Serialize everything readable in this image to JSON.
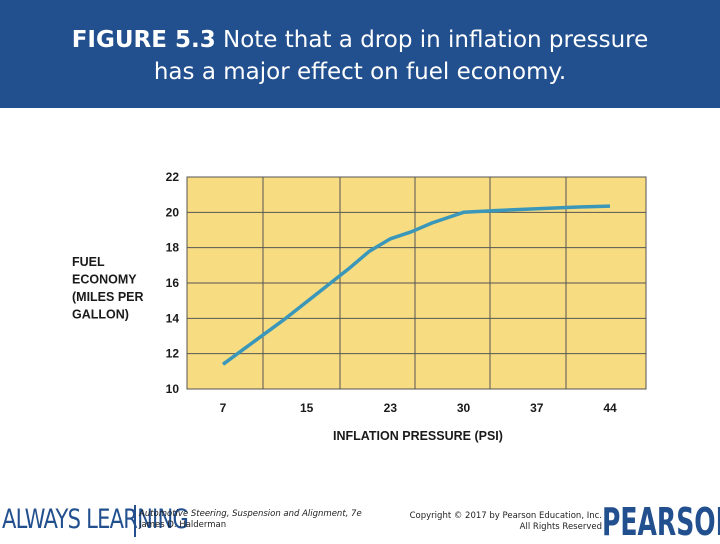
{
  "slide": {
    "figure_label": "FIGURE 5.3",
    "caption_line1": " Note that a drop in inflation pressure",
    "caption_line2": "has a major effect on fuel economy."
  },
  "chart_data": {
    "type": "line",
    "x": [
      7,
      15,
      23,
      30,
      37,
      44
    ],
    "categories": [
      "7",
      "15",
      "23",
      "30",
      "37",
      "44"
    ],
    "series": [
      {
        "x": [
          7,
          10,
          13,
          16,
          19,
          21,
          23,
          25,
          27,
          30,
          33,
          37,
          41,
          44
        ],
        "values": [
          11.4,
          12.7,
          14.0,
          15.4,
          16.8,
          17.8,
          18.5,
          18.9,
          19.4,
          20.0,
          20.1,
          20.2,
          20.3,
          20.35
        ]
      }
    ],
    "y_ticks": [
      10,
      12,
      14,
      16,
      18,
      20,
      22
    ],
    "ylim": [
      10,
      22
    ],
    "xlabel": "INFLATION PRESSURE (PSI)",
    "ylabel_lines": [
      "FUEL",
      "ECONOMY",
      "(MILES PER",
      "GALLON)"
    ],
    "grid": true,
    "colors": {
      "plot_bg": "#f7dc82",
      "grid": "#555555",
      "line": "#3b97b9"
    }
  },
  "footer": {
    "always_learning": "ALWAYS LEARNING",
    "book_title": "Automotive Steering, Suspension and Alignment, 7e",
    "book_author": "James D. Halderman",
    "copyright": "Copyright © 2017 by Pearson Education, Inc.",
    "rights": "All Rights Reserved",
    "brand": "PEARSON"
  },
  "colors": {
    "title_band": "#22508f",
    "title_text": "#ffffff"
  }
}
